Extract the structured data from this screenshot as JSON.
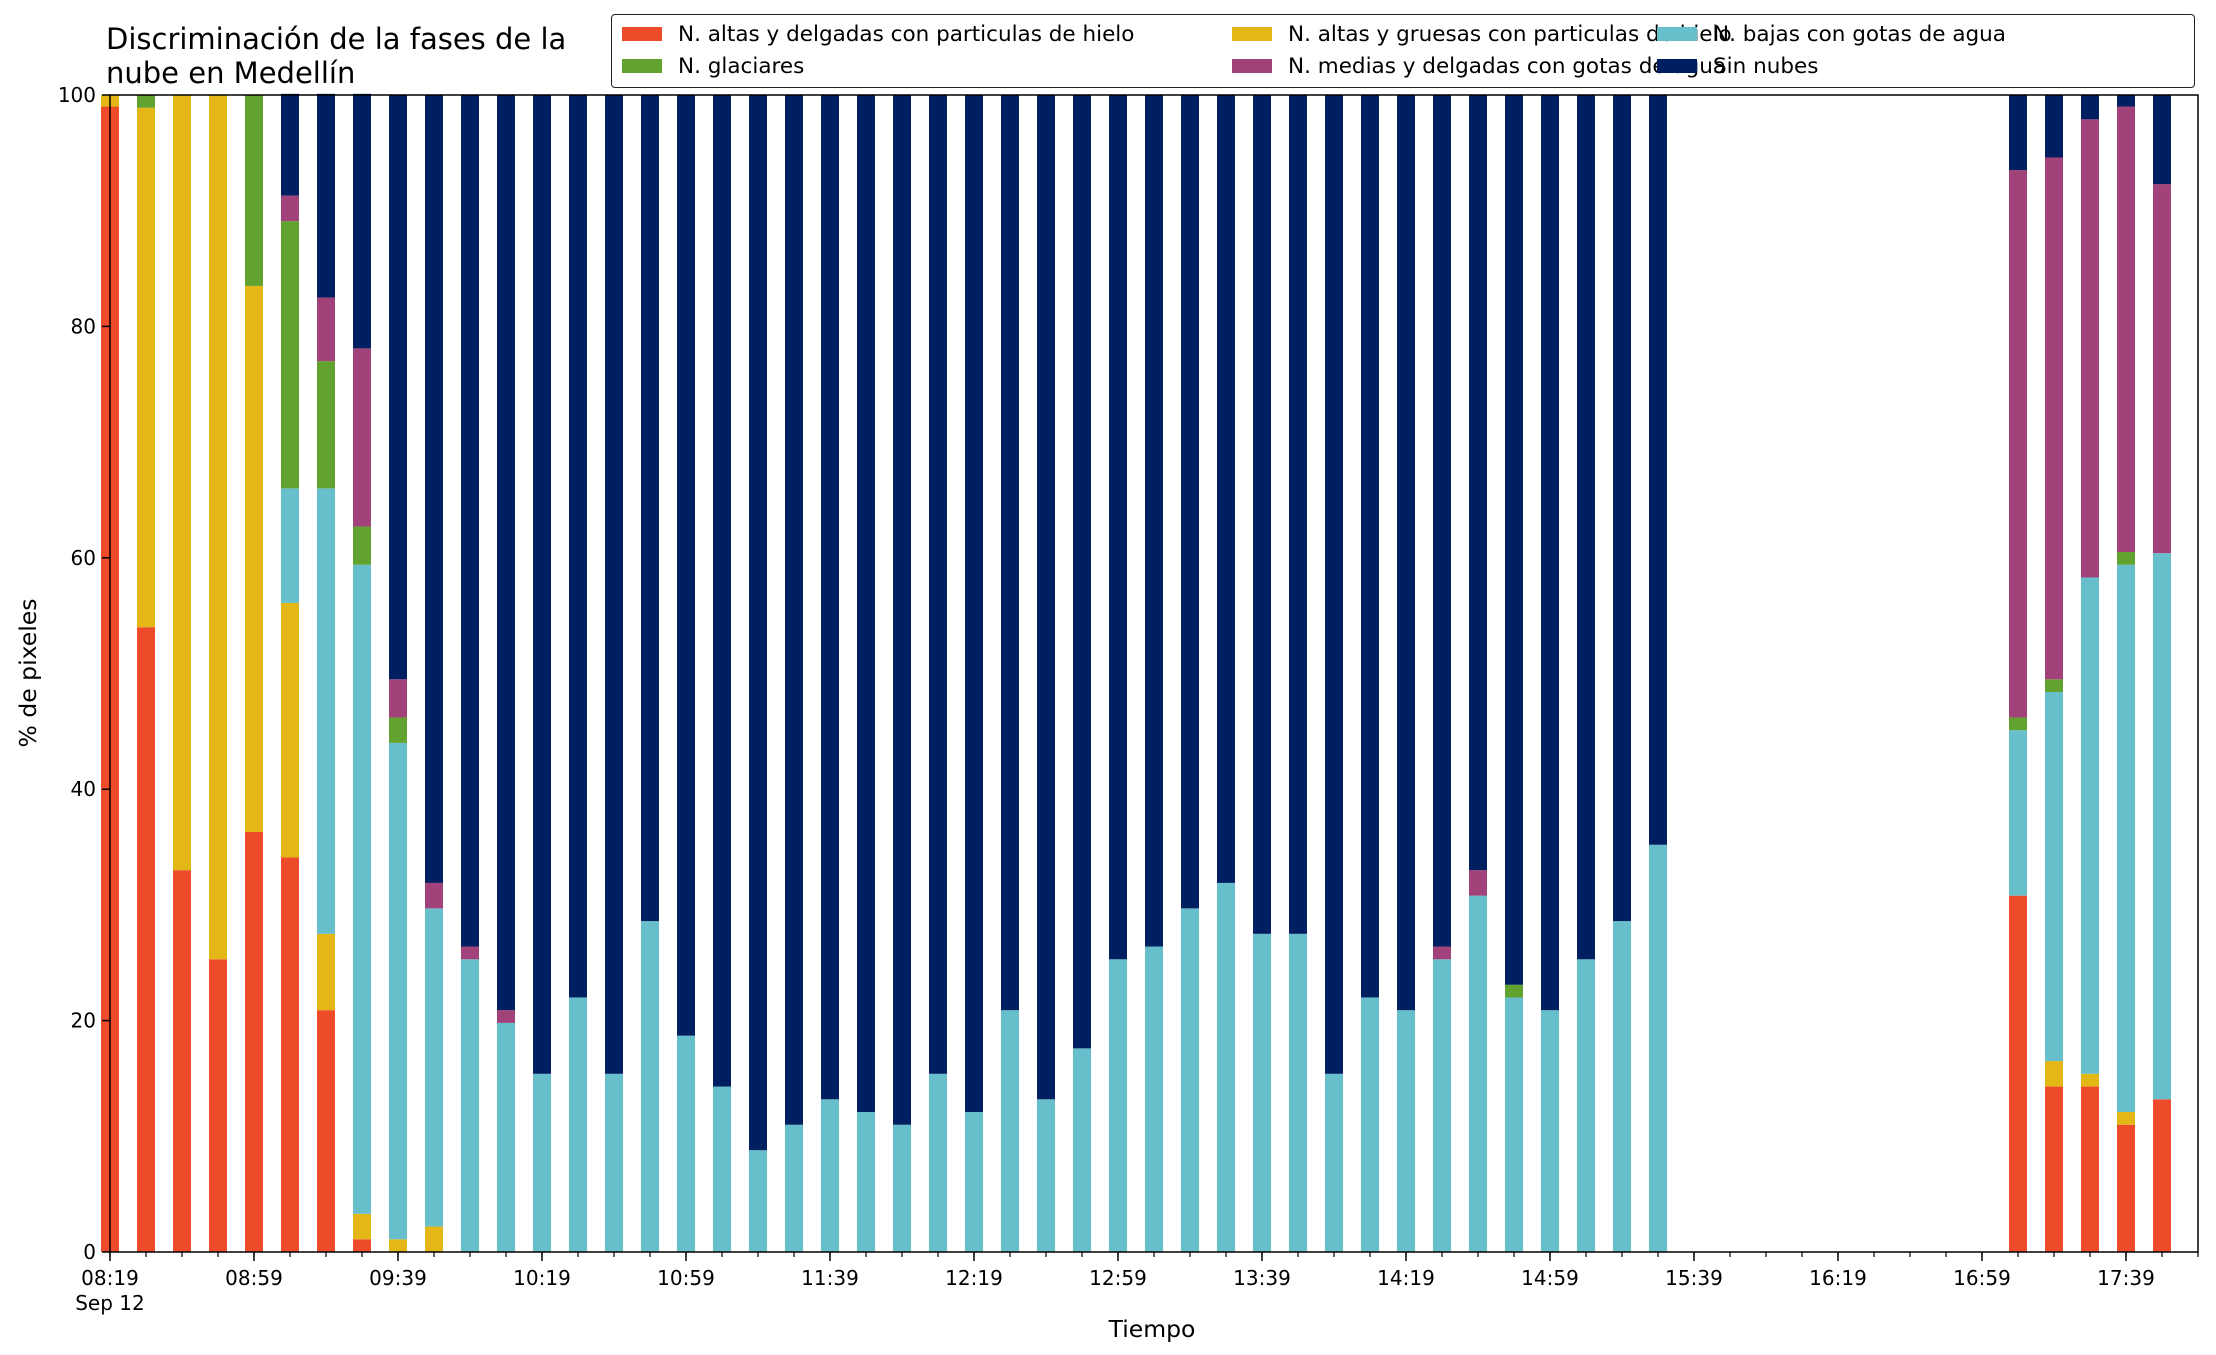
{
  "chart_data": {
    "type": "bar",
    "stacked": true,
    "title": "Discriminación de la fases de la\nnube en Medellín",
    "xlabel": "Tiempo",
    "ylabel": "% de pixeles",
    "ylim": [
      0,
      100
    ],
    "yticks": [
      0,
      20,
      40,
      60,
      80,
      100
    ],
    "xlim": [
      "08:19",
      "17:59"
    ],
    "xticks": [
      "08:19",
      "08:59",
      "09:39",
      "10:19",
      "10:59",
      "11:39",
      "12:19",
      "12:59",
      "13:39",
      "14:19",
      "14:59",
      "15:39",
      "16:19",
      "16:59",
      "17:39"
    ],
    "xtick_first_sublabel": "Sep 12",
    "grid": false,
    "legend": {
      "placement": "top-right",
      "columns": 3
    },
    "x": [
      "08:19",
      "08:29",
      "08:39",
      "08:49",
      "08:59",
      "09:09",
      "09:19",
      "09:29",
      "09:39",
      "09:49",
      "09:59",
      "10:09",
      "10:19",
      "10:29",
      "10:39",
      "10:49",
      "10:59",
      "11:09",
      "11:19",
      "11:29",
      "11:39",
      "11:49",
      "11:59",
      "12:09",
      "12:19",
      "12:29",
      "12:39",
      "12:49",
      "12:59",
      "13:09",
      "13:19",
      "13:29",
      "13:39",
      "13:49",
      "13:59",
      "14:09",
      "14:19",
      "14:29",
      "14:39",
      "14:49",
      "14:59",
      "15:09",
      "15:19",
      "15:29",
      "17:09",
      "17:19",
      "17:29",
      "17:39",
      "17:49"
    ],
    "series": [
      {
        "name": "N. altas y delgadas con particulas de hielo",
        "color": "#ee4b2b",
        "values": [
          99,
          54,
          33,
          25.3,
          36.3,
          34.1,
          20.9,
          1.1,
          0,
          0,
          0,
          0,
          0,
          0,
          0,
          0,
          0,
          0,
          0,
          0,
          0,
          0,
          0,
          0,
          0,
          0,
          0,
          0,
          0,
          0,
          0,
          0,
          0,
          0,
          0,
          0,
          0,
          0,
          0,
          0,
          0,
          0,
          0,
          0,
          30.8,
          14.3,
          14.3,
          11,
          13.2
        ]
      },
      {
        "name": "N. altas y gruesas con particulas de hielo",
        "color": "#e3b716",
        "values": [
          1,
          44.9,
          67,
          74.7,
          47.2,
          22,
          6.6,
          2.2,
          1.1,
          2.2,
          0,
          0,
          0,
          0,
          0,
          0,
          0,
          0,
          0,
          0,
          0,
          0,
          0,
          0,
          0,
          0,
          0,
          0,
          0,
          0,
          0,
          0,
          0,
          0,
          0,
          0,
          0,
          0,
          0,
          0,
          0,
          0,
          0,
          0,
          0,
          2.2,
          1.1,
          1.1,
          0
        ]
      },
      {
        "name": "N. bajas con gotas de agua",
        "color": "#66bfca",
        "values": [
          0,
          0,
          0,
          0,
          0,
          9.9,
          38.5,
          56.1,
          42.9,
          27.5,
          25.3,
          19.8,
          15.4,
          22,
          15.4,
          28.6,
          18.7,
          14.3,
          8.8,
          11,
          13.2,
          12.1,
          11,
          15.4,
          12.1,
          20.9,
          13.2,
          17.6,
          25.3,
          26.4,
          29.7,
          31.9,
          27.5,
          27.5,
          15.4,
          22,
          20.9,
          25.3,
          30.8,
          22,
          20.9,
          25.3,
          28.6,
          35.2,
          14.3,
          31.9,
          42.9,
          47.3,
          47.2
        ]
      },
      {
        "name": "N. glaciares",
        "color": "#62a22f",
        "values": [
          0,
          1.1,
          0,
          0,
          16.5,
          23.1,
          11,
          3.3,
          2.2,
          0,
          0,
          0,
          0,
          0,
          0,
          0,
          0,
          0,
          0,
          0,
          0,
          0,
          0,
          0,
          0,
          0,
          0,
          0,
          0,
          0,
          0,
          0,
          0,
          0,
          0,
          0,
          0,
          0,
          0,
          1.1,
          0,
          0,
          0,
          0,
          1.1,
          1.1,
          0,
          1.1,
          0
        ]
      },
      {
        "name": "N. medias y delgadas con gotas de agua",
        "color": "#a2427a",
        "values": [
          0,
          0,
          0,
          0,
          0,
          2.2,
          5.5,
          15.4,
          3.3,
          2.2,
          1.1,
          1.1,
          0,
          0,
          0,
          0,
          0,
          0,
          0,
          0,
          0,
          0,
          0,
          0,
          0,
          0,
          0,
          0,
          0,
          0,
          0,
          0,
          0,
          0,
          0,
          0,
          0,
          1.1,
          2.2,
          0,
          0,
          0,
          0,
          0,
          47.3,
          45.1,
          39.6,
          38.5,
          31.9
        ]
      },
      {
        "name": "Sin nubes",
        "color": "#001f60",
        "values": [
          0,
          0,
          0,
          0,
          0,
          8.8,
          17.6,
          22,
          50.5,
          68.1,
          73.6,
          79.1,
          84.6,
          78,
          84.6,
          71.4,
          81.3,
          85.7,
          91.2,
          89,
          86.8,
          87.9,
          89,
          84.6,
          87.9,
          79.1,
          86.8,
          82.4,
          74.7,
          73.6,
          70.3,
          68.1,
          72.5,
          72.5,
          84.6,
          78,
          79.1,
          73.6,
          67,
          76.9,
          79.1,
          74.7,
          71.4,
          64.8,
          6.5,
          5.4,
          2.1,
          1,
          7.7
        ]
      }
    ]
  }
}
